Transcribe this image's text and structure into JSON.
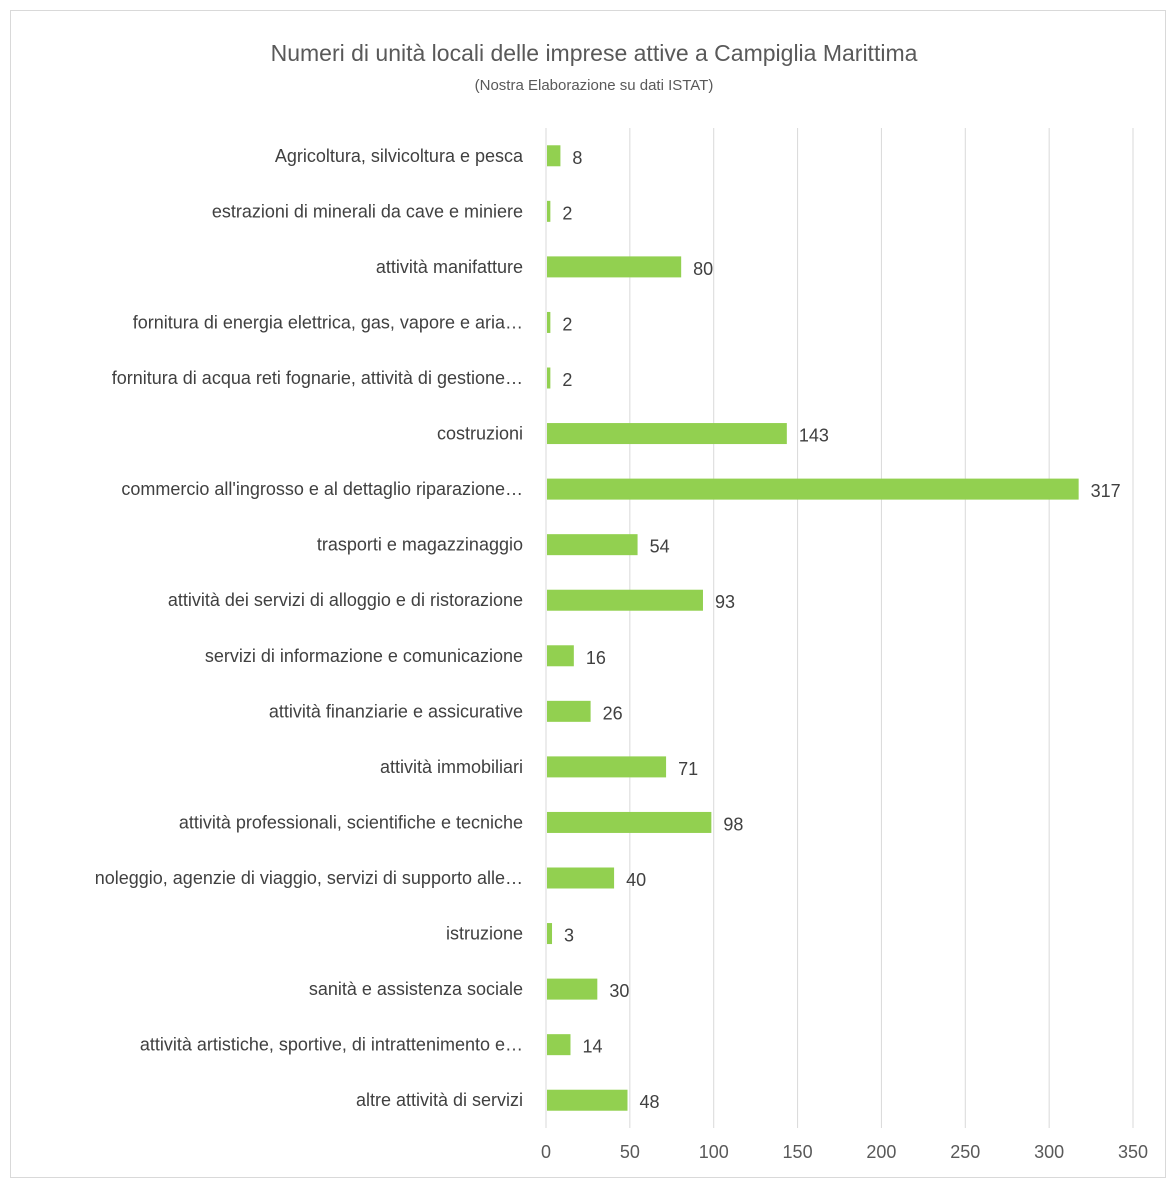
{
  "chart_data": {
    "type": "bar",
    "orientation": "horizontal",
    "title": "Numeri di unità locali delle imprese attive a Campiglia Marittima",
    "subtitle": "(Nostra Elaborazione su dati ISTAT)",
    "categories": [
      "Agricoltura, silvicoltura e pesca",
      "estrazioni di minerali da cave e miniere",
      "attività manifatture",
      "fornitura di energia elettrica, gas, vapore e aria…",
      "fornitura di acqua reti fognarie, attività di gestione…",
      "costruzioni",
      "commercio all'ingrosso e al dettaglio riparazione…",
      "trasporti e magazzinaggio",
      "attività dei servizi di alloggio e di ristorazione",
      "servizi di informazione e comunicazione",
      "attività finanziarie e assicurative",
      "attività immobiliari",
      "attività professionali, scientifiche e tecniche",
      "noleggio, agenzie di viaggio, servizi di supporto alle…",
      "istruzione",
      "sanità e assistenza sociale",
      "attività artistiche, sportive, di intrattenimento e…",
      "altre attività di servizi"
    ],
    "values": [
      8,
      2,
      80,
      2,
      2,
      143,
      317,
      54,
      93,
      16,
      26,
      71,
      98,
      40,
      3,
      30,
      14,
      48
    ],
    "value_labels": [
      "8",
      "2",
      "80",
      "2",
      "2",
      "143",
      "317",
      "54",
      "93",
      "16",
      "26",
      "71",
      "98",
      "40",
      "3",
      "30",
      "14",
      "48"
    ],
    "xlim": [
      0,
      350
    ],
    "xticks": [
      "0",
      "50",
      "100",
      "150",
      "200",
      "250",
      "300",
      "350"
    ],
    "grid": true,
    "bar_color": "#92d050",
    "grid_color": "#d9d9d9"
  }
}
